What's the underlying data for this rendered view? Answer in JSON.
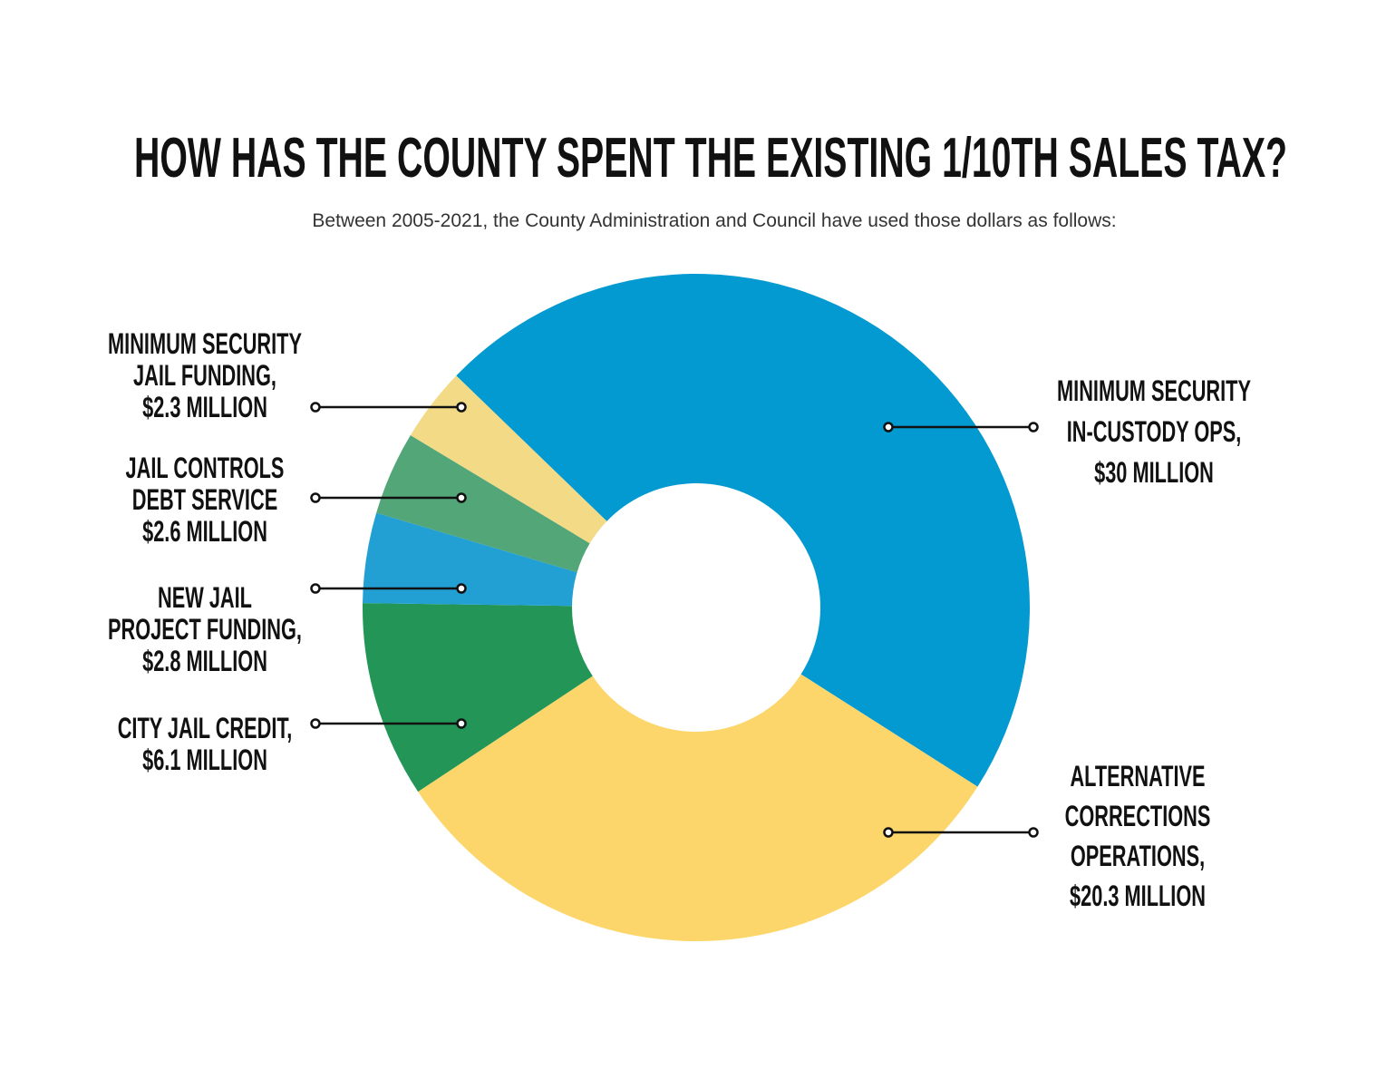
{
  "chart_data": {
    "type": "donut",
    "title": "HOW HAS THE COUNTY SPENT THE EXISTING 1/10TH SALES TAX?",
    "subtitle": "Between 2005-2021, the County Administration and Council have used those dollars as follows:",
    "categories": [
      [
        "MINIMUM SECURITY",
        "IN-CUSTODY OPS,"
      ],
      [
        "ALTERNATIVE",
        "CORRECTIONS",
        "OPERATIONS,"
      ],
      [
        "CITY JAIL CREDIT,"
      ],
      [
        "NEW JAIL",
        "PROJECT FUNDING,"
      ],
      [
        "JAIL CONTROLS",
        "DEBT SERVICE"
      ],
      [
        "MINIMUM SECURITY",
        "JAIL FUNDING,"
      ]
    ],
    "values": [
      30,
      20.3,
      6.1,
      2.8,
      2.6,
      2.3
    ],
    "value_labels": [
      "$30 MILLION",
      "$20.3 MILLION",
      "$6.1 MILLION",
      "$2.8 MILLION",
      "$2.6 MILLION",
      "$2.3 MILLION"
    ],
    "colors": [
      "#0399d1",
      "#fcd66a",
      "#229557",
      "#22a0d4",
      "#52a678",
      "#f3da87"
    ]
  }
}
